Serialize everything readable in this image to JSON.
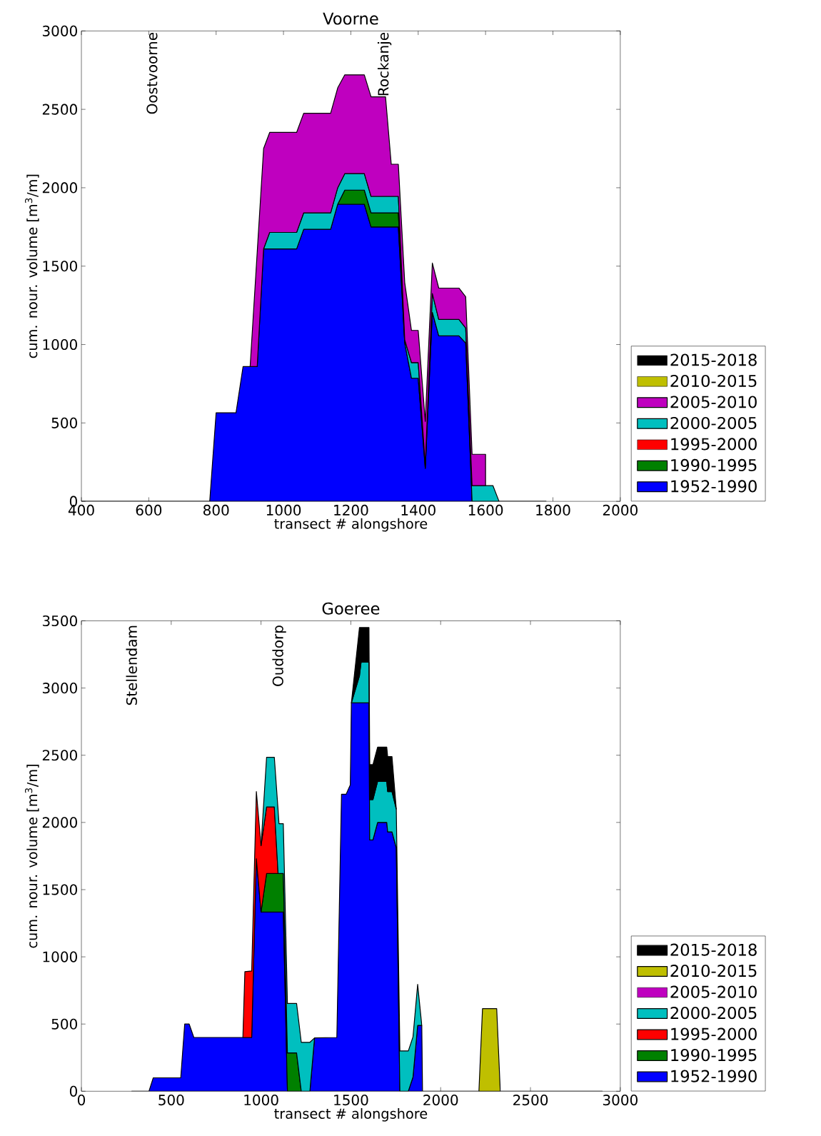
{
  "chart_data": [
    {
      "type": "area",
      "stacked": true,
      "title": "Voorne",
      "xlabel": "transect # alongshore",
      "ylabel": "cum. nour. volume [m$^{3}$/m]",
      "x": [
        400,
        781,
        800,
        859,
        880,
        901,
        922,
        941,
        959,
        1039,
        1060,
        1140,
        1161,
        1182,
        1240,
        1260,
        1303,
        1320,
        1341,
        1360,
        1380,
        1400,
        1421,
        1442,
        1461,
        1521,
        1541,
        1560,
        1600,
        1600,
        1622,
        1640,
        1780
      ],
      "series": [
        {
          "name": "1952-1990",
          "color": "#0000ff",
          "values": [
            0,
            0,
            565,
            565,
            860,
            860,
            860,
            1610,
            1610,
            1610,
            1735,
            1735,
            1895,
            1895,
            1895,
            1750,
            1750,
            1750,
            1750,
            1010,
            785,
            785,
            210,
            1205,
            1055,
            1055,
            1010,
            0,
            0,
            0,
            0,
            0,
            0
          ]
        },
        {
          "name": "1990-1995",
          "color": "#008000",
          "values": [
            null,
            null,
            null,
            null,
            null,
            null,
            null,
            null,
            null,
            null,
            null,
            null,
            0,
            90,
            90,
            90,
            90,
            90,
            90,
            0,
            null,
            null,
            null,
            null,
            null,
            null,
            null,
            null,
            null,
            null,
            null,
            null,
            null
          ]
        },
        {
          "name": "1995-2000",
          "color": "#ff0000",
          "values": [
            null,
            null,
            null,
            null,
            null,
            null,
            null,
            null,
            null,
            null,
            null,
            null,
            null,
            null,
            null,
            null,
            null,
            null,
            null,
            null,
            null,
            null,
            null,
            null,
            null,
            null,
            null,
            null,
            null,
            null,
            null,
            null,
            null
          ]
        },
        {
          "name": "2000-2005",
          "color": "#00bfbf",
          "values": [
            null,
            null,
            null,
            null,
            null,
            null,
            null,
            0,
            105,
            105,
            105,
            105,
            105,
            105,
            105,
            105,
            105,
            105,
            105,
            20,
            100,
            100,
            20,
            120,
            105,
            105,
            95,
            100,
            100,
            100,
            100,
            0,
            null
          ]
        },
        {
          "name": "2005-2010",
          "color": "#bf00bf",
          "values": [
            null,
            null,
            null,
            null,
            null,
            0,
            730,
            640,
            638,
            638,
            635,
            635,
            637,
            630,
            630,
            635,
            635,
            205,
            205,
            365,
            205,
            205,
            280,
            195,
            200,
            200,
            200,
            200,
            200,
            0,
            null,
            null,
            null
          ]
        },
        {
          "name": "2010-2015",
          "color": "#bfbf00",
          "values": [
            null,
            null,
            null,
            null,
            null,
            null,
            null,
            null,
            null,
            null,
            null,
            null,
            null,
            null,
            null,
            null,
            null,
            null,
            null,
            null,
            null,
            null,
            null,
            null,
            null,
            null,
            null,
            null,
            null,
            null,
            null,
            null,
            null
          ]
        },
        {
          "name": "2015-2018",
          "color": "#000000",
          "values": [
            null,
            null,
            null,
            null,
            null,
            null,
            null,
            null,
            null,
            null,
            null,
            null,
            null,
            null,
            null,
            null,
            null,
            null,
            null,
            null,
            null,
            null,
            null,
            null,
            null,
            null,
            null,
            null,
            null,
            null,
            null,
            null,
            null
          ]
        }
      ],
      "xlim": [
        400,
        2000
      ],
      "ylim": [
        0,
        3000
      ],
      "xticks": [
        400,
        600,
        800,
        1000,
        1200,
        1400,
        1600,
        1800,
        2000
      ],
      "yticks": [
        0,
        500,
        1000,
        1500,
        2000,
        2500,
        3000
      ],
      "legend": "right",
      "annotations": [
        "Oostvoorne",
        "Rockanje"
      ]
    },
    {
      "type": "area",
      "stacked": true,
      "title": "Goeree",
      "xlabel": "transect # alongshore",
      "ylabel": "cum. nour. volume [m$^{3}$/m]",
      "x": [
        280,
        376,
        400,
        553,
        575,
        600,
        626,
        899,
        910,
        948,
        974,
        1000,
        1031,
        1074,
        1095,
        1100,
        1124,
        1147,
        1198,
        1224,
        1272,
        1298,
        1422,
        1448,
        1474,
        1497,
        1503,
        1548,
        1557,
        1601,
        1605,
        1623,
        1649,
        1700,
        1705,
        1729,
        1753,
        1773,
        1820,
        1846,
        1872,
        1895,
        1899,
        2213,
        2233,
        2312,
        2332,
        2900
      ],
      "series": [
        {
          "name": "1952-1990",
          "color": "#0000ff",
          "values": [
            0,
            0,
            100,
            100,
            500,
            500,
            400,
            400,
            400,
            400,
            1730,
            1333,
            1333,
            1333,
            1333,
            1333,
            1333,
            0,
            0,
            0,
            0,
            397,
            400,
            2210,
            2210,
            2280,
            2890,
            2890,
            2890,
            2890,
            1870,
            1870,
            2000,
            2000,
            1930,
            1930,
            1810,
            0,
            0,
            105,
            490,
            490,
            0,
            0,
            0,
            0,
            0,
            0
          ]
        },
        {
          "name": "1990-1995",
          "color": "#008000",
          "values": [
            null,
            null,
            null,
            null,
            null,
            null,
            null,
            null,
            null,
            null,
            null,
            0,
            287,
            287,
            287,
            287,
            287,
            285,
            285,
            0,
            null,
            null,
            null,
            null,
            null,
            null,
            null,
            null,
            null,
            null,
            null,
            null,
            null,
            null,
            null,
            null,
            null,
            null,
            null,
            null,
            null,
            null,
            null,
            null,
            null,
            null,
            null,
            null
          ]
        },
        {
          "name": "1995-2000",
          "color": "#ff0000",
          "values": [
            null,
            null,
            null,
            null,
            null,
            null,
            null,
            0,
            490,
            495,
            500,
            494,
            495,
            495,
            0,
            null,
            null,
            null,
            null,
            null,
            null,
            null,
            null,
            null,
            null,
            null,
            null,
            null,
            null,
            null,
            null,
            null,
            null,
            null,
            null,
            null,
            null,
            null,
            null,
            null,
            null,
            null,
            null,
            null,
            null,
            null,
            null,
            null
          ]
        },
        {
          "name": "2000-2005",
          "color": "#00bfbf",
          "values": [
            null,
            null,
            null,
            null,
            null,
            null,
            null,
            null,
            null,
            null,
            null,
            0,
            370,
            370,
            470,
            371,
            371,
            368,
            368,
            364,
            364,
            0,
            null,
            null,
            null,
            null,
            0,
            201,
            302,
            302,
            300,
            300,
            305,
            305,
            300,
            300,
            290,
            300,
            300,
            300,
            305,
            0,
            null,
            null,
            null,
            null,
            null,
            null
          ]
        },
        {
          "name": "2005-2010",
          "color": "#bf00bf",
          "values": [
            null,
            null,
            null,
            null,
            null,
            null,
            null,
            null,
            null,
            null,
            null,
            null,
            null,
            null,
            null,
            null,
            null,
            null,
            null,
            null,
            null,
            null,
            null,
            null,
            null,
            null,
            null,
            null,
            null,
            null,
            null,
            null,
            null,
            null,
            null,
            null,
            null,
            null,
            null,
            null,
            null,
            null,
            null,
            null,
            null,
            null,
            null,
            null
          ]
        },
        {
          "name": "2010-2015",
          "color": "#bfbf00",
          "values": [
            null,
            null,
            null,
            null,
            null,
            null,
            null,
            null,
            null,
            null,
            null,
            null,
            null,
            null,
            null,
            null,
            null,
            null,
            null,
            null,
            null,
            null,
            null,
            null,
            null,
            null,
            null,
            null,
            null,
            null,
            null,
            null,
            null,
            null,
            null,
            null,
            null,
            null,
            null,
            null,
            null,
            null,
            null,
            0,
            615,
            615,
            0,
            null
          ]
        },
        {
          "name": "2015-2018",
          "color": "#000000",
          "values": [
            null,
            null,
            null,
            null,
            null,
            null,
            null,
            null,
            null,
            null,
            null,
            null,
            null,
            null,
            null,
            null,
            null,
            null,
            null,
            null,
            null,
            null,
            null,
            null,
            null,
            null,
            0,
            359,
            258,
            258,
            260,
            260,
            255,
            255,
            260,
            260,
            0,
            null,
            null,
            null,
            null,
            null,
            null,
            null,
            null,
            null,
            null,
            null
          ]
        }
      ],
      "xlim": [
        0,
        3000
      ],
      "ylim": [
        0,
        3500
      ],
      "xticks": [
        0,
        500,
        1000,
        1500,
        2000,
        2500,
        3000
      ],
      "yticks": [
        0,
        500,
        1000,
        1500,
        2000,
        2500,
        3000,
        3500
      ],
      "legend": "right",
      "annotations": [
        "Stellendam",
        "Ouddorp"
      ]
    }
  ]
}
